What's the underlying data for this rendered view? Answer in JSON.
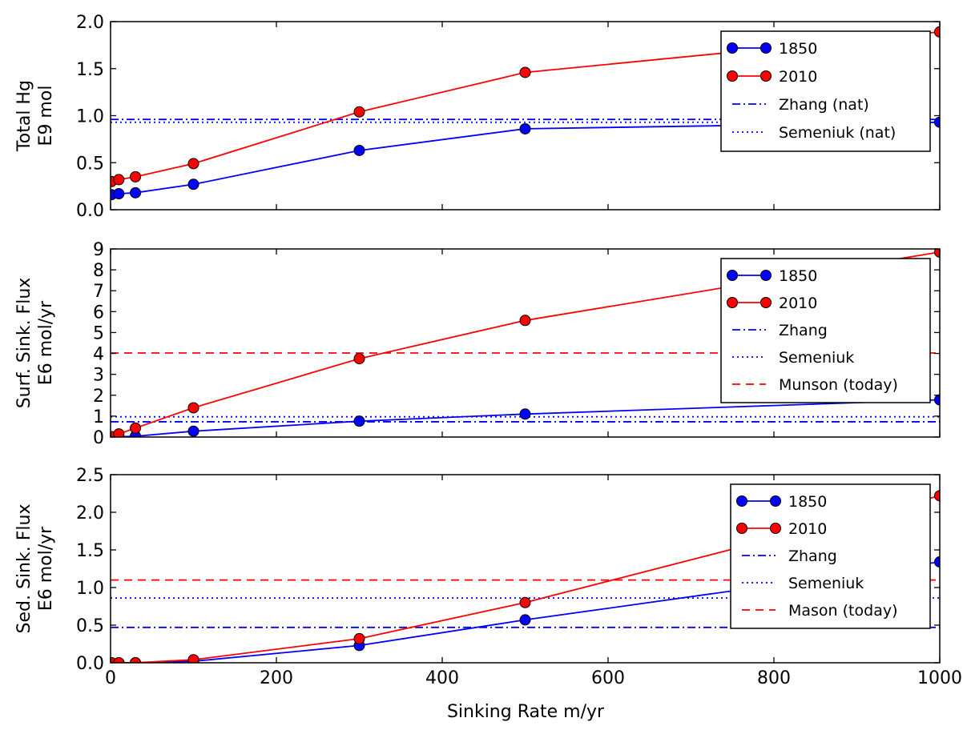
{
  "figure": {
    "xlabel": "Sinking Rate m/yr",
    "colors": {
      "blue": "#0000ff",
      "red": "#ff0000",
      "axis": "#000000",
      "background": "#ffffff"
    }
  },
  "chart_data": [
    {
      "type": "line",
      "ylabel_lines": [
        "Total Hg",
        "E9 mol"
      ],
      "xlim": [
        0,
        1000
      ],
      "ylim": [
        0,
        2.0
      ],
      "xticks": [
        0,
        200,
        400,
        600,
        800,
        1000
      ],
      "xtick_labels": [
        "",
        "",
        "",
        "",
        "",
        ""
      ],
      "yticks": [
        0,
        0.5,
        1.0,
        1.5,
        2.0
      ],
      "ytick_labels": [
        "0.0",
        "0.5",
        "1.0",
        "1.5",
        "2.0"
      ],
      "legend_position": "upper-right",
      "series": [
        {
          "name": "1850",
          "color": "#0000ff",
          "style": "solid-marker",
          "x": [
            1,
            10,
            30,
            100,
            300,
            500,
            1000
          ],
          "y": [
            0.16,
            0.17,
            0.18,
            0.27,
            0.63,
            0.86,
            0.93
          ]
        },
        {
          "name": "2010",
          "color": "#ff0000",
          "style": "solid-marker",
          "x": [
            1,
            10,
            30,
            100,
            300,
            500,
            1000
          ],
          "y": [
            0.3,
            0.32,
            0.35,
            0.49,
            1.04,
            1.46,
            1.89
          ]
        }
      ],
      "hlines": [
        {
          "name": "Zhang (nat)",
          "color": "#0000ff",
          "style": "dashdot",
          "y": 0.96
        },
        {
          "name": "Semeniuk (nat)",
          "color": "#0000ff",
          "style": "dotted",
          "y": 0.93
        }
      ]
    },
    {
      "type": "line",
      "ylabel_lines": [
        "Surf. Sink. Flux",
        "E6 mol/yr"
      ],
      "xlim": [
        0,
        1000
      ],
      "ylim": [
        0,
        9
      ],
      "xticks": [
        0,
        200,
        400,
        600,
        800,
        1000
      ],
      "xtick_labels": [
        "",
        "",
        "",
        "",
        "",
        ""
      ],
      "yticks": [
        0,
        1,
        2,
        3,
        4,
        5,
        6,
        7,
        8,
        9
      ],
      "ytick_labels": [
        "0",
        "1",
        "2",
        "3",
        "4",
        "5",
        "6",
        "7",
        "8",
        "9"
      ],
      "legend_position": "upper-right",
      "series": [
        {
          "name": "1850",
          "color": "#0000ff",
          "style": "solid-marker",
          "x": [
            1,
            10,
            30,
            100,
            300,
            500,
            1000
          ],
          "y": [
            0.0,
            0.01,
            0.04,
            0.28,
            0.76,
            1.1,
            1.78
          ]
        },
        {
          "name": "2010",
          "color": "#ff0000",
          "style": "solid-marker",
          "x": [
            1,
            10,
            30,
            100,
            300,
            500,
            1000
          ],
          "y": [
            0.02,
            0.15,
            0.43,
            1.4,
            3.75,
            5.58,
            8.85
          ]
        }
      ],
      "hlines": [
        {
          "name": "Zhang",
          "color": "#0000ff",
          "style": "dashdot",
          "y": 0.73
        },
        {
          "name": "Semeniuk",
          "color": "#0000ff",
          "style": "dotted",
          "y": 0.97
        },
        {
          "name": "Munson (today)",
          "color": "#ff0000",
          "style": "dashed",
          "y": 4.02
        }
      ]
    },
    {
      "type": "line",
      "ylabel_lines": [
        "Sed. Sink. Flux",
        "E6 mol/yr"
      ],
      "xlim": [
        0,
        1000
      ],
      "ylim": [
        0,
        2.5
      ],
      "xticks": [
        0,
        200,
        400,
        600,
        800,
        1000
      ],
      "xtick_labels": [
        "0",
        "200",
        "400",
        "600",
        "800",
        "1000"
      ],
      "yticks": [
        0,
        0.5,
        1.0,
        1.5,
        2.0,
        2.5
      ],
      "ytick_labels": [
        "0.0",
        "0.5",
        "1.0",
        "1.5",
        "2.0",
        "2.5"
      ],
      "legend_position": "upper-right",
      "series": [
        {
          "name": "1850",
          "color": "#0000ff",
          "style": "solid-marker",
          "x": [
            1,
            10,
            30,
            100,
            300,
            500,
            1000
          ],
          "y": [
            0.0,
            0.0,
            0.0,
            0.02,
            0.23,
            0.57,
            1.34
          ]
        },
        {
          "name": "2010",
          "color": "#ff0000",
          "style": "solid-marker",
          "x": [
            1,
            10,
            30,
            100,
            300,
            500,
            1000
          ],
          "y": [
            0.0,
            0.0,
            0.0,
            0.04,
            0.32,
            0.8,
            2.22
          ]
        }
      ],
      "hlines": [
        {
          "name": "Zhang",
          "color": "#0000ff",
          "style": "dashdot",
          "y": 0.47
        },
        {
          "name": "Semeniuk",
          "color": "#0000ff",
          "style": "dotted",
          "y": 0.86
        },
        {
          "name": "Mason (today)",
          "color": "#ff0000",
          "style": "dashed",
          "y": 1.1
        }
      ]
    }
  ]
}
